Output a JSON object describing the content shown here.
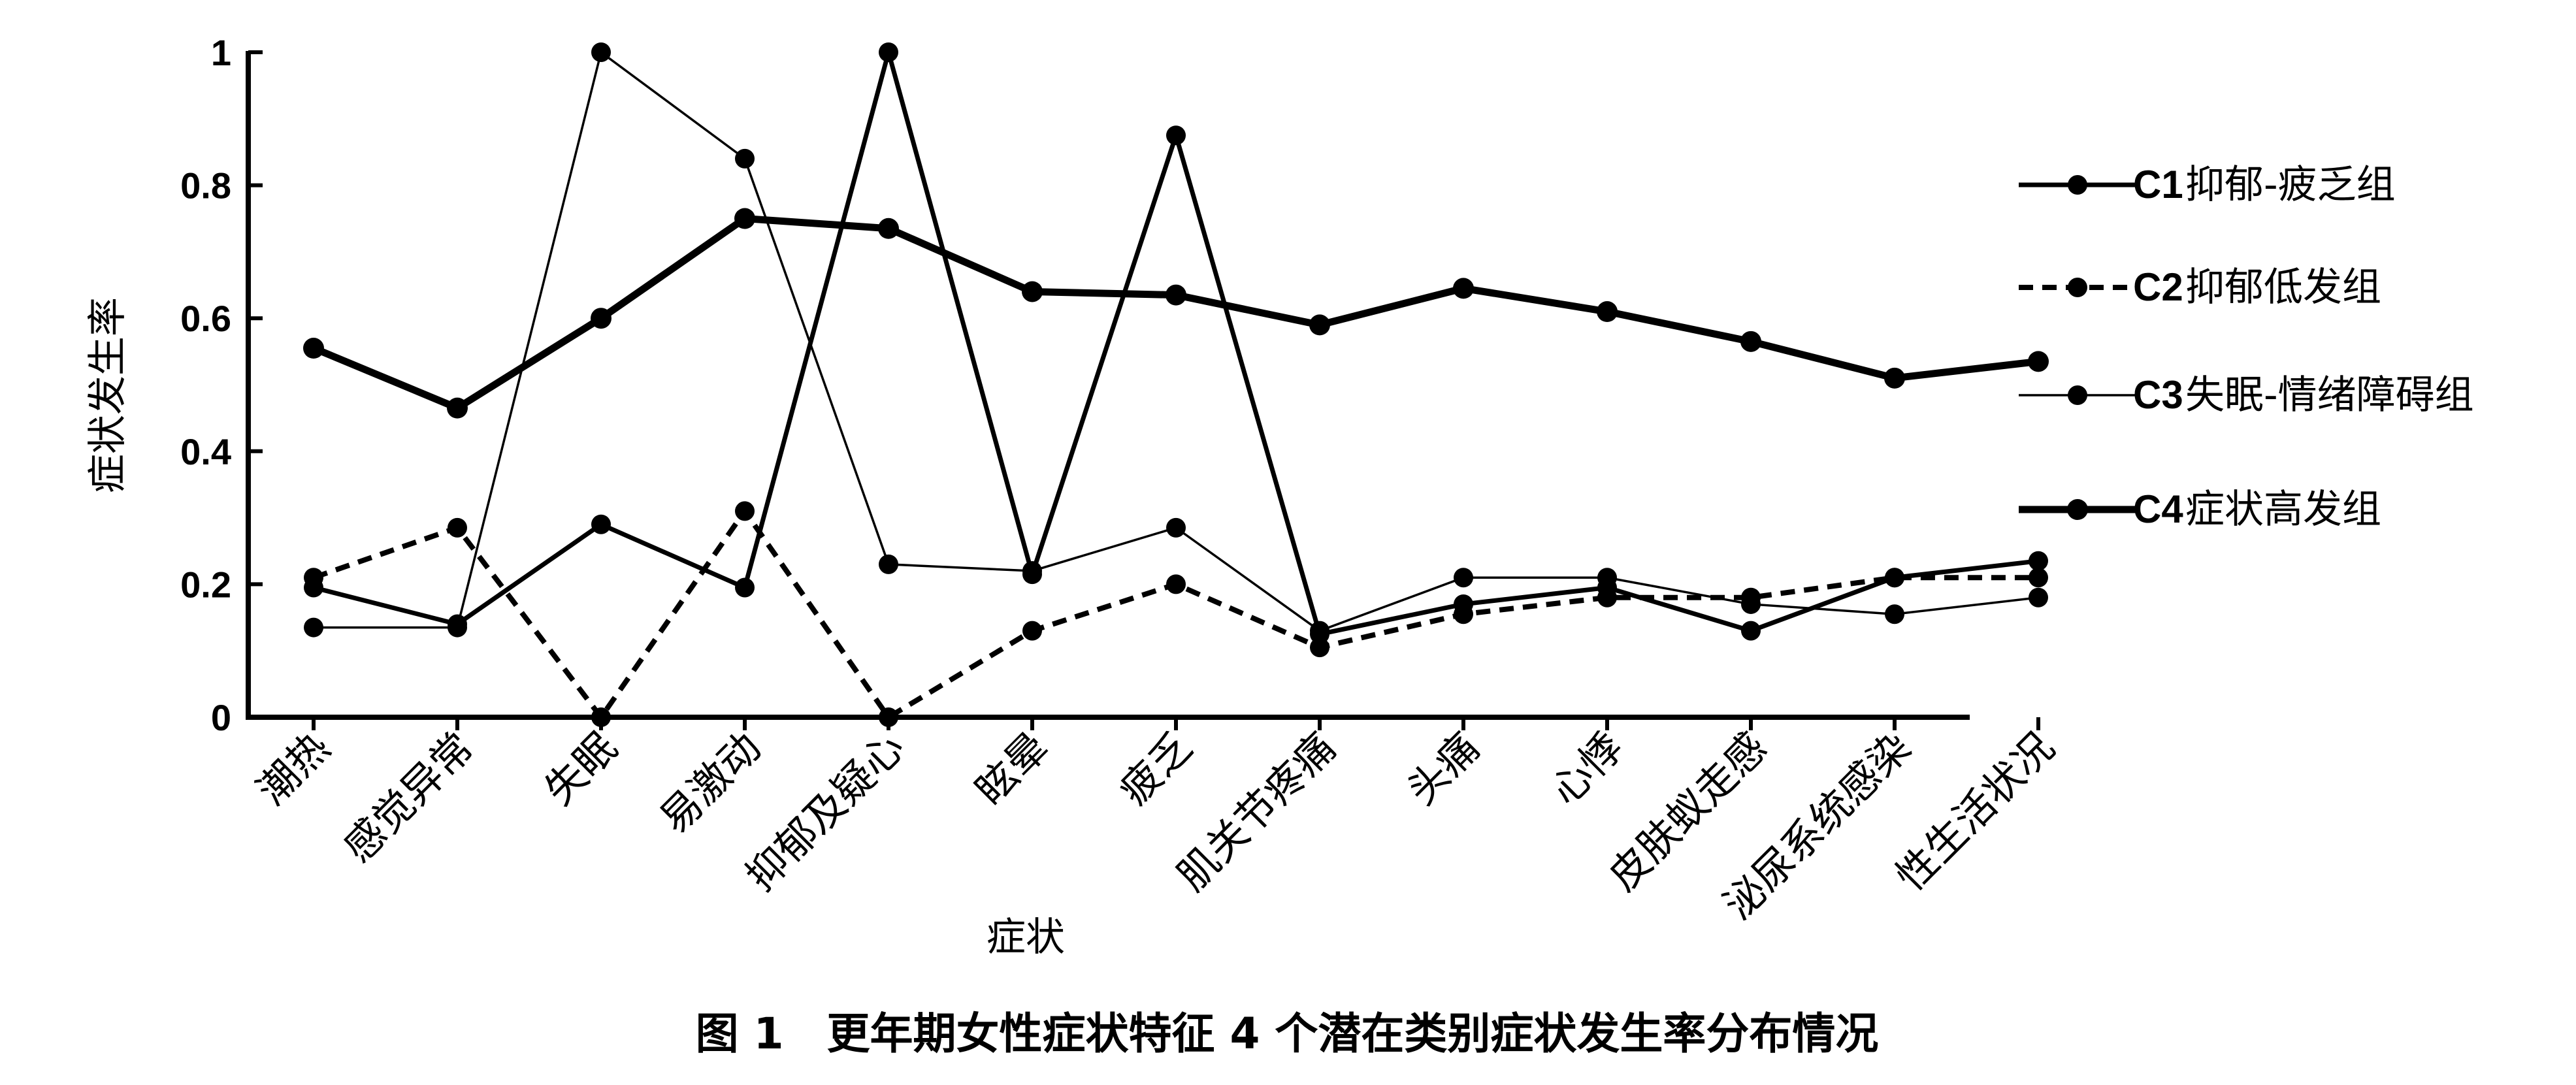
{
  "chart_data": {
    "type": "line",
    "title": "图 1　更年期女性症状特征 4 个潜在类别症状发生率分布情况",
    "xlabel": "症状",
    "ylabel": "症状发生率",
    "ylim": [
      0,
      1
    ],
    "yticks": [
      "0",
      "0.2",
      "0.4",
      "0.6",
      "0.8",
      "1"
    ],
    "grid": false,
    "legend_position": "right",
    "categories": [
      "潮热",
      "感觉异常",
      "失眠",
      "易激动",
      "抑郁及疑心",
      "眩晕",
      "疲乏",
      "肌关节疼痛",
      "头痛",
      "心悸",
      "皮肤蚁走感",
      "泌尿系统感染",
      "性生活状况"
    ],
    "series": [
      {
        "code": "C1",
        "name": "抑郁-疲乏组",
        "style": "solid-thick",
        "values": [
          0.195,
          0.14,
          0.29,
          0.195,
          1.0,
          0.215,
          0.875,
          0.125,
          0.17,
          0.195,
          0.13,
          0.21,
          0.235
        ]
      },
      {
        "code": "C2",
        "name": "抑郁低发组",
        "style": "dashed",
        "values": [
          0.21,
          0.285,
          0.0,
          0.31,
          0.0,
          0.13,
          0.2,
          0.105,
          0.155,
          0.18,
          0.18,
          0.21,
          0.21
        ]
      },
      {
        "code": "C3",
        "name": "失眠-情绪障碍组",
        "style": "solid-thin",
        "values": [
          0.135,
          0.135,
          1.0,
          0.84,
          0.23,
          0.22,
          0.285,
          0.13,
          0.21,
          0.21,
          0.17,
          0.155,
          0.18
        ]
      },
      {
        "code": "C4",
        "name": "症状高发组",
        "style": "solid-bold",
        "values": [
          0.555,
          0.465,
          0.6,
          0.75,
          0.735,
          0.64,
          0.635,
          0.59,
          0.645,
          0.61,
          0.565,
          0.51,
          0.535
        ]
      }
    ]
  }
}
